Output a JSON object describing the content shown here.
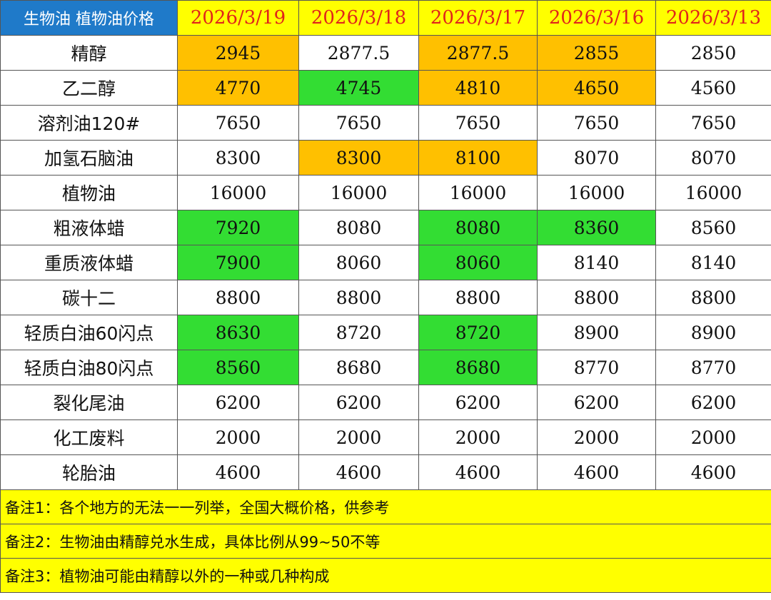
{
  "table": {
    "corner_title": "生物油 植物油价格",
    "dates": [
      "2026/3/19",
      "2026/3/18",
      "2026/3/17",
      "2026/3/16",
      "2026/3/13"
    ],
    "rows": [
      {
        "name": "精醇",
        "values": [
          "2945",
          "2877.5",
          "2877.5",
          "2855",
          "2850"
        ],
        "highlights": [
          "orange",
          "white",
          "orange",
          "orange",
          "white"
        ]
      },
      {
        "name": "乙二醇",
        "values": [
          "4770",
          "4745",
          "4810",
          "4650",
          "4560"
        ],
        "highlights": [
          "orange",
          "green",
          "orange",
          "orange",
          "white"
        ]
      },
      {
        "name": "溶剂油120#",
        "values": [
          "7650",
          "7650",
          "7650",
          "7650",
          "7650"
        ],
        "highlights": [
          "white",
          "white",
          "white",
          "white",
          "white"
        ]
      },
      {
        "name": "加氢石脑油",
        "values": [
          "8300",
          "8300",
          "8100",
          "8070",
          "8070"
        ],
        "highlights": [
          "white",
          "orange",
          "orange",
          "white",
          "white"
        ]
      },
      {
        "name": "植物油",
        "values": [
          "16000",
          "16000",
          "16000",
          "16000",
          "16000"
        ],
        "highlights": [
          "white",
          "white",
          "white",
          "white",
          "white"
        ]
      },
      {
        "name": "粗液体蜡",
        "values": [
          "7920",
          "8080",
          "8080",
          "8360",
          "8560"
        ],
        "highlights": [
          "green",
          "white",
          "green",
          "green",
          "white"
        ]
      },
      {
        "name": "重质液体蜡",
        "values": [
          "7900",
          "8060",
          "8060",
          "8140",
          "8140"
        ],
        "highlights": [
          "green",
          "white",
          "green",
          "white",
          "white"
        ]
      },
      {
        "name": "碳十二",
        "values": [
          "8800",
          "8800",
          "8800",
          "8800",
          "8800"
        ],
        "highlights": [
          "white",
          "white",
          "white",
          "white",
          "white"
        ]
      },
      {
        "name": "轻质白油60闪点",
        "values": [
          "8630",
          "8720",
          "8720",
          "8900",
          "8900"
        ],
        "highlights": [
          "green",
          "white",
          "green",
          "white",
          "white"
        ]
      },
      {
        "name": "轻质白油80闪点",
        "values": [
          "8560",
          "8680",
          "8680",
          "8770",
          "8770"
        ],
        "highlights": [
          "green",
          "white",
          "green",
          "white",
          "white"
        ]
      },
      {
        "name": "裂化尾油",
        "values": [
          "6200",
          "6200",
          "6200",
          "6200",
          "6200"
        ],
        "highlights": [
          "white",
          "white",
          "white",
          "white",
          "white"
        ]
      },
      {
        "name": "化工废料",
        "values": [
          "2000",
          "2000",
          "2000",
          "2000",
          "2000"
        ],
        "highlights": [
          "white",
          "white",
          "white",
          "white",
          "white"
        ]
      },
      {
        "name": "轮胎油",
        "values": [
          "4600",
          "4600",
          "4600",
          "4600",
          "4600"
        ],
        "highlights": [
          "white",
          "white",
          "white",
          "white",
          "white"
        ]
      }
    ]
  },
  "notes": [
    "备注1：各个地方的无法一一列举，全国大概价格，供参考",
    "备注2：生物油由精醇兑水生成，具体比例从99~50不等",
    "备注3：植物油可能由精醇以外的一种或几种构成"
  ],
  "colors": {
    "corner_bg": "#1f7ac9",
    "header_bg": "#ffff00",
    "date_text": "#e0241b",
    "orange": "#ffc000",
    "green": "#33dd33",
    "white": "#ffffff",
    "note_bg": "#ffff00"
  }
}
